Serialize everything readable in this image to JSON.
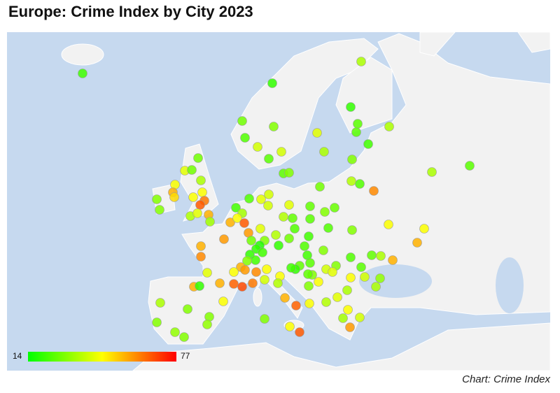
{
  "title": "Europe: Crime Index by City 2023",
  "source": "Chart: Crime Index",
  "scale": {
    "min": 14,
    "max": 77
  },
  "points": [
    22,
    35,
    20,
    20,
    28,
    25,
    35,
    24,
    30,
    42,
    25,
    40,
    40,
    35,
    22,
    25,
    28,
    30,
    35,
    25,
    42,
    28,
    26,
    30,
    45,
    35,
    36,
    24,
    28,
    60,
    55,
    50,
    45,
    40,
    30,
    45,
    62,
    66,
    24,
    42,
    30,
    40,
    42,
    26,
    27,
    35,
    42,
    55,
    34,
    22,
    34,
    36,
    30,
    55,
    45,
    66,
    26,
    25,
    45,
    45,
    42,
    58,
    36,
    24,
    24,
    30,
    58,
    28,
    30,
    22,
    28,
    55,
    18,
    20,
    20,
    24,
    30,
    55,
    60,
    20,
    22,
    22,
    30,
    22,
    24,
    26,
    35,
    55,
    25,
    26,
    55,
    58,
    60,
    45,
    20,
    40,
    30,
    25,
    42,
    45,
    22,
    42,
    30,
    40,
    45,
    26,
    45,
    40,
    32,
    55,
    20,
    55,
    65,
    68,
    62,
    45,
    36,
    30,
    35,
    35,
    35,
    45,
    55,
    30,
    65,
    45,
    36,
    42,
    45,
    30,
    30,
    32,
    30,
    34,
    40,
    32,
    30,
    45,
    66,
    58
  ]
}
